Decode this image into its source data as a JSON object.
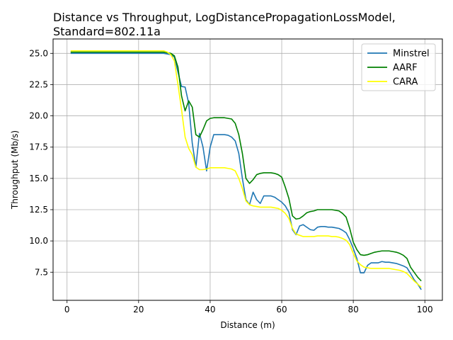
{
  "chart_data": {
    "type": "line",
    "title_lines": [
      "Distance vs Throughput, LogDistancePropagationLossModel,",
      "Standard=802.11a"
    ],
    "xlabel": "Distance (m)",
    "ylabel": "Throughput (Mb/s)",
    "xlim": [
      -3.9,
      104.9
    ],
    "ylim": [
      5.25,
      26.15
    ],
    "xticks": [
      0,
      20,
      40,
      60,
      80,
      100
    ],
    "yticks": [
      7.5,
      10.0,
      12.5,
      15.0,
      17.5,
      20.0,
      22.5,
      25.0
    ],
    "xtick_labels": [
      "0",
      "20",
      "40",
      "60",
      "80",
      "100"
    ],
    "ytick_labels": [
      "7.5",
      "10.0",
      "12.5",
      "15.0",
      "17.5",
      "20.0",
      "22.5",
      "25.0"
    ],
    "grid": true,
    "legend_position": "top-right",
    "series": [
      {
        "name": "Minstrel",
        "color": "#1f77b4",
        "points": [
          [
            1,
            25.0
          ],
          [
            10,
            25.0
          ],
          [
            20,
            25.0
          ],
          [
            27,
            25.0
          ],
          [
            28,
            24.95
          ],
          [
            29,
            24.9
          ],
          [
            30,
            24.7
          ],
          [
            31,
            23.5
          ],
          [
            32,
            22.35
          ],
          [
            33,
            22.3
          ],
          [
            34,
            21.0
          ],
          [
            35,
            17.8
          ],
          [
            36,
            15.9
          ],
          [
            37,
            18.6
          ],
          [
            38,
            17.5
          ],
          [
            39,
            15.6
          ],
          [
            40,
            17.5
          ],
          [
            41,
            18.5
          ],
          [
            42,
            18.5
          ],
          [
            43,
            18.5
          ],
          [
            44,
            18.5
          ],
          [
            45,
            18.45
          ],
          [
            46,
            18.3
          ],
          [
            47,
            18.0
          ],
          [
            48,
            17.0
          ],
          [
            49,
            15.0
          ],
          [
            50,
            13.3
          ],
          [
            51,
            12.9
          ],
          [
            52,
            13.9
          ],
          [
            53,
            13.3
          ],
          [
            54,
            13.0
          ],
          [
            55,
            13.6
          ],
          [
            56,
            13.6
          ],
          [
            57,
            13.6
          ],
          [
            58,
            13.5
          ],
          [
            59,
            13.3
          ],
          [
            60,
            13.1
          ],
          [
            61,
            12.8
          ],
          [
            62,
            12.3
          ],
          [
            63,
            10.9
          ],
          [
            64,
            10.5
          ],
          [
            65,
            11.2
          ],
          [
            66,
            11.3
          ],
          [
            67,
            11.1
          ],
          [
            68,
            10.9
          ],
          [
            69,
            10.85
          ],
          [
            70,
            11.1
          ],
          [
            71,
            11.15
          ],
          [
            72,
            11.15
          ],
          [
            73,
            11.1
          ],
          [
            74,
            11.1
          ],
          [
            75,
            11.05
          ],
          [
            76,
            11.0
          ],
          [
            77,
            10.85
          ],
          [
            78,
            10.65
          ],
          [
            79,
            10.1
          ],
          [
            80,
            9.4
          ],
          [
            81,
            8.6
          ],
          [
            82,
            7.45
          ],
          [
            83,
            7.45
          ],
          [
            84,
            8.05
          ],
          [
            85,
            8.25
          ],
          [
            86,
            8.25
          ],
          [
            87,
            8.25
          ],
          [
            88,
            8.35
          ],
          [
            89,
            8.3
          ],
          [
            90,
            8.3
          ],
          [
            91,
            8.25
          ],
          [
            92,
            8.2
          ],
          [
            93,
            8.1
          ],
          [
            94,
            8.0
          ],
          [
            95,
            7.85
          ],
          [
            96,
            7.4
          ],
          [
            97,
            6.9
          ],
          [
            98,
            6.55
          ],
          [
            99,
            6.1
          ]
        ]
      },
      {
        "name": "AARF",
        "color": "#008000",
        "points": [
          [
            1,
            25.1
          ],
          [
            10,
            25.1
          ],
          [
            20,
            25.1
          ],
          [
            27,
            25.1
          ],
          [
            28,
            25.05
          ],
          [
            29,
            25.0
          ],
          [
            30,
            24.8
          ],
          [
            31,
            23.9
          ],
          [
            32,
            21.6
          ],
          [
            33,
            20.4
          ],
          [
            34,
            21.2
          ],
          [
            35,
            20.7
          ],
          [
            36,
            18.5
          ],
          [
            37,
            18.3
          ],
          [
            38,
            18.9
          ],
          [
            39,
            19.6
          ],
          [
            40,
            19.8
          ],
          [
            41,
            19.85
          ],
          [
            42,
            19.85
          ],
          [
            43,
            19.85
          ],
          [
            44,
            19.85
          ],
          [
            45,
            19.8
          ],
          [
            46,
            19.75
          ],
          [
            47,
            19.4
          ],
          [
            48,
            18.5
          ],
          [
            49,
            17.0
          ],
          [
            50,
            15.0
          ],
          [
            51,
            14.6
          ],
          [
            52,
            14.9
          ],
          [
            53,
            15.3
          ],
          [
            54,
            15.4
          ],
          [
            55,
            15.45
          ],
          [
            56,
            15.45
          ],
          [
            57,
            15.45
          ],
          [
            58,
            15.4
          ],
          [
            59,
            15.3
          ],
          [
            60,
            15.1
          ],
          [
            61,
            14.3
          ],
          [
            62,
            13.4
          ],
          [
            63,
            12.0
          ],
          [
            64,
            11.75
          ],
          [
            65,
            11.8
          ],
          [
            66,
            12.0
          ],
          [
            67,
            12.25
          ],
          [
            68,
            12.35
          ],
          [
            69,
            12.4
          ],
          [
            70,
            12.5
          ],
          [
            71,
            12.5
          ],
          [
            72,
            12.5
          ],
          [
            73,
            12.5
          ],
          [
            74,
            12.5
          ],
          [
            75,
            12.45
          ],
          [
            76,
            12.4
          ],
          [
            77,
            12.2
          ],
          [
            78,
            11.9
          ],
          [
            79,
            11.0
          ],
          [
            80,
            9.9
          ],
          [
            81,
            9.3
          ],
          [
            82,
            8.9
          ],
          [
            83,
            8.85
          ],
          [
            84,
            8.9
          ],
          [
            85,
            9.0
          ],
          [
            86,
            9.1
          ],
          [
            87,
            9.15
          ],
          [
            88,
            9.2
          ],
          [
            89,
            9.2
          ],
          [
            90,
            9.2
          ],
          [
            91,
            9.15
          ],
          [
            92,
            9.1
          ],
          [
            93,
            9.0
          ],
          [
            94,
            8.85
          ],
          [
            95,
            8.6
          ],
          [
            96,
            7.9
          ],
          [
            97,
            7.5
          ],
          [
            98,
            7.1
          ],
          [
            99,
            6.8
          ]
        ]
      },
      {
        "name": "CARA",
        "color": "#ffff00",
        "points": [
          [
            1,
            25.2
          ],
          [
            10,
            25.2
          ],
          [
            20,
            25.2
          ],
          [
            27,
            25.2
          ],
          [
            28,
            25.1
          ],
          [
            29,
            24.9
          ],
          [
            30,
            24.4
          ],
          [
            31,
            22.5
          ],
          [
            32,
            20.5
          ],
          [
            33,
            18.3
          ],
          [
            34,
            17.4
          ],
          [
            35,
            16.9
          ],
          [
            36,
            15.9
          ],
          [
            37,
            15.7
          ],
          [
            38,
            15.7
          ],
          [
            39,
            15.75
          ],
          [
            40,
            15.85
          ],
          [
            41,
            15.85
          ],
          [
            42,
            15.85
          ],
          [
            43,
            15.85
          ],
          [
            44,
            15.85
          ],
          [
            45,
            15.8
          ],
          [
            46,
            15.75
          ],
          [
            47,
            15.6
          ],
          [
            48,
            15.0
          ],
          [
            49,
            14.2
          ],
          [
            50,
            13.2
          ],
          [
            51,
            12.9
          ],
          [
            52,
            12.8
          ],
          [
            53,
            12.75
          ],
          [
            54,
            12.7
          ],
          [
            55,
            12.7
          ],
          [
            56,
            12.7
          ],
          [
            57,
            12.7
          ],
          [
            58,
            12.65
          ],
          [
            59,
            12.6
          ],
          [
            60,
            12.45
          ],
          [
            61,
            12.2
          ],
          [
            62,
            11.8
          ],
          [
            63,
            11.0
          ],
          [
            64,
            10.55
          ],
          [
            65,
            10.45
          ],
          [
            66,
            10.35
          ],
          [
            67,
            10.35
          ],
          [
            68,
            10.35
          ],
          [
            69,
            10.35
          ],
          [
            70,
            10.4
          ],
          [
            71,
            10.4
          ],
          [
            72,
            10.4
          ],
          [
            73,
            10.4
          ],
          [
            74,
            10.35
          ],
          [
            75,
            10.35
          ],
          [
            76,
            10.3
          ],
          [
            77,
            10.2
          ],
          [
            78,
            10.05
          ],
          [
            79,
            9.7
          ],
          [
            80,
            9.0
          ],
          [
            81,
            8.4
          ],
          [
            82,
            8.1
          ],
          [
            83,
            7.9
          ],
          [
            84,
            7.85
          ],
          [
            85,
            7.8
          ],
          [
            86,
            7.8
          ],
          [
            87,
            7.8
          ],
          [
            88,
            7.8
          ],
          [
            89,
            7.8
          ],
          [
            90,
            7.8
          ],
          [
            91,
            7.75
          ],
          [
            92,
            7.7
          ],
          [
            93,
            7.65
          ],
          [
            94,
            7.55
          ],
          [
            95,
            7.4
          ],
          [
            96,
            7.1
          ],
          [
            97,
            6.8
          ],
          [
            98,
            6.55
          ],
          [
            99,
            6.3
          ]
        ]
      }
    ]
  }
}
